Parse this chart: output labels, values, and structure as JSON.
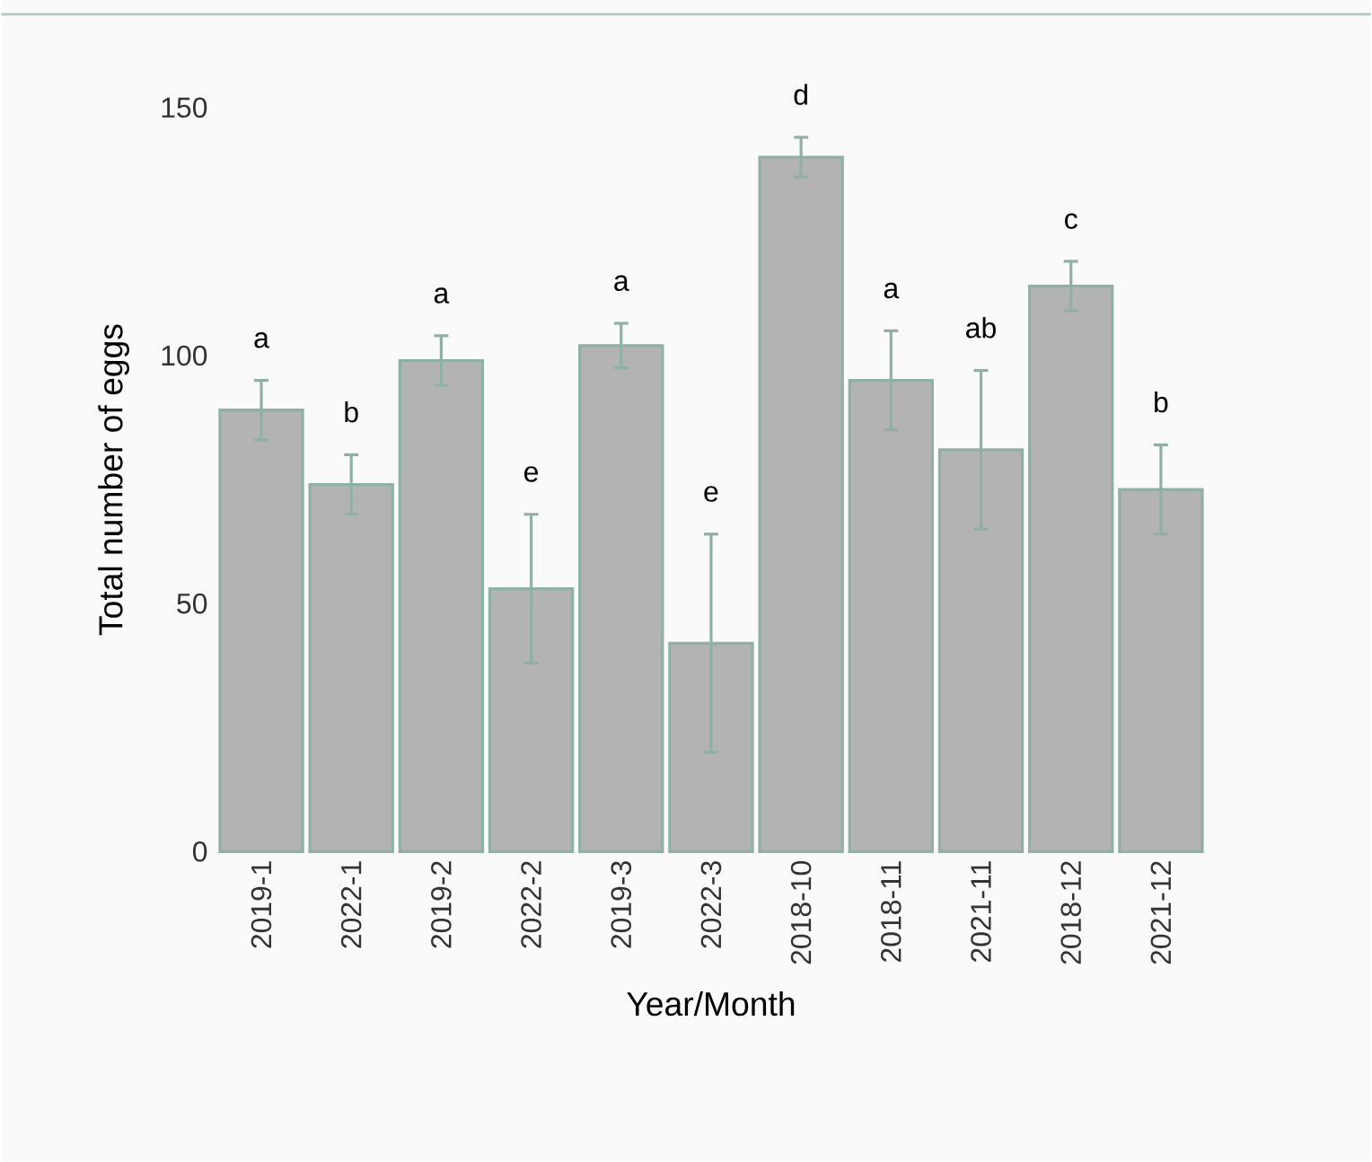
{
  "chart_data": {
    "type": "bar",
    "xlabel": "Year/Month",
    "ylabel": "Total number of eggs",
    "categories": [
      "2019-1",
      "2022-1",
      "2019-2",
      "2022-2",
      "2019-3",
      "2022-3",
      "2018-10",
      "2018-11",
      "2021-11",
      "2018-12",
      "2021-12"
    ],
    "values": [
      89,
      74,
      99,
      53,
      102,
      42,
      140,
      95,
      81,
      114,
      73
    ],
    "errors": [
      6,
      6,
      5,
      15,
      4.5,
      22,
      4,
      10,
      16,
      5,
      9
    ],
    "color": "#b3b3b3",
    "ylim": [
      0,
      150
    ],
    "yticks": [
      0,
      50,
      100,
      150
    ],
    "annotations": [
      "a",
      "b",
      "a",
      "e",
      "a",
      "e",
      "d",
      "a",
      "ab",
      "c",
      "b"
    ]
  }
}
